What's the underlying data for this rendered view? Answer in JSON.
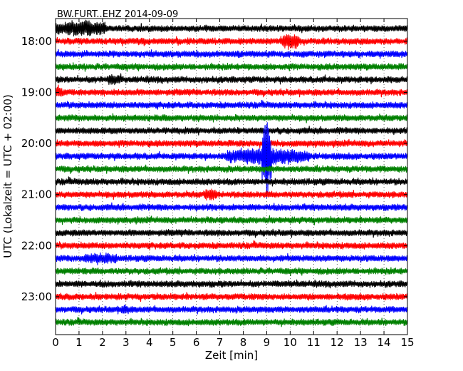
{
  "chart_data": {
    "type": "line",
    "title": "BW.FURT..EHZ 2014-09-09",
    "xlabel": "Zeit  [min]",
    "ylabel": "UTC (Lokalzeit = UTC + 02:00)",
    "xlim": [
      0,
      15
    ],
    "x_ticks": [
      "0",
      "1",
      "2",
      "3",
      "4",
      "5",
      "6",
      "7",
      "8",
      "9",
      "10",
      "11",
      "12",
      "13",
      "14",
      "15"
    ],
    "y_tick_labels": [
      "18:00",
      "19:00",
      "20:00",
      "21:00",
      "22:00",
      "23:00"
    ],
    "grid": true,
    "trace_colors": [
      "#000000",
      "#ff0000",
      "#0000ff",
      "#008000"
    ],
    "trace_count": 24,
    "trace_interval_minutes": 15,
    "first_trace_time": "17:45",
    "events": [
      {
        "trace": 0,
        "start_min": 0,
        "end_min": 2.2,
        "amp": 1.0
      },
      {
        "trace": 1,
        "start_min": 9.6,
        "end_min": 10.4,
        "amp": 1.0
      },
      {
        "trace": 4,
        "start_min": 2.2,
        "end_min": 2.8,
        "amp": 0.5
      },
      {
        "trace": 5,
        "start_min": 0.0,
        "end_min": 0.3,
        "amp": 0.7
      },
      {
        "trace": 10,
        "start_min": 7.3,
        "end_min": 10.8,
        "amp": 1.2
      },
      {
        "trace": 10,
        "start_min": 8.8,
        "end_min": 9.2,
        "amp": 6.0
      },
      {
        "trace": 13,
        "start_min": 6.3,
        "end_min": 6.9,
        "amp": 0.7
      },
      {
        "trace": 18,
        "start_min": 1.2,
        "end_min": 2.6,
        "amp": 0.6
      },
      {
        "trace": 22,
        "start_min": 2.8,
        "end_min": 3.1,
        "amp": 0.4
      }
    ]
  }
}
